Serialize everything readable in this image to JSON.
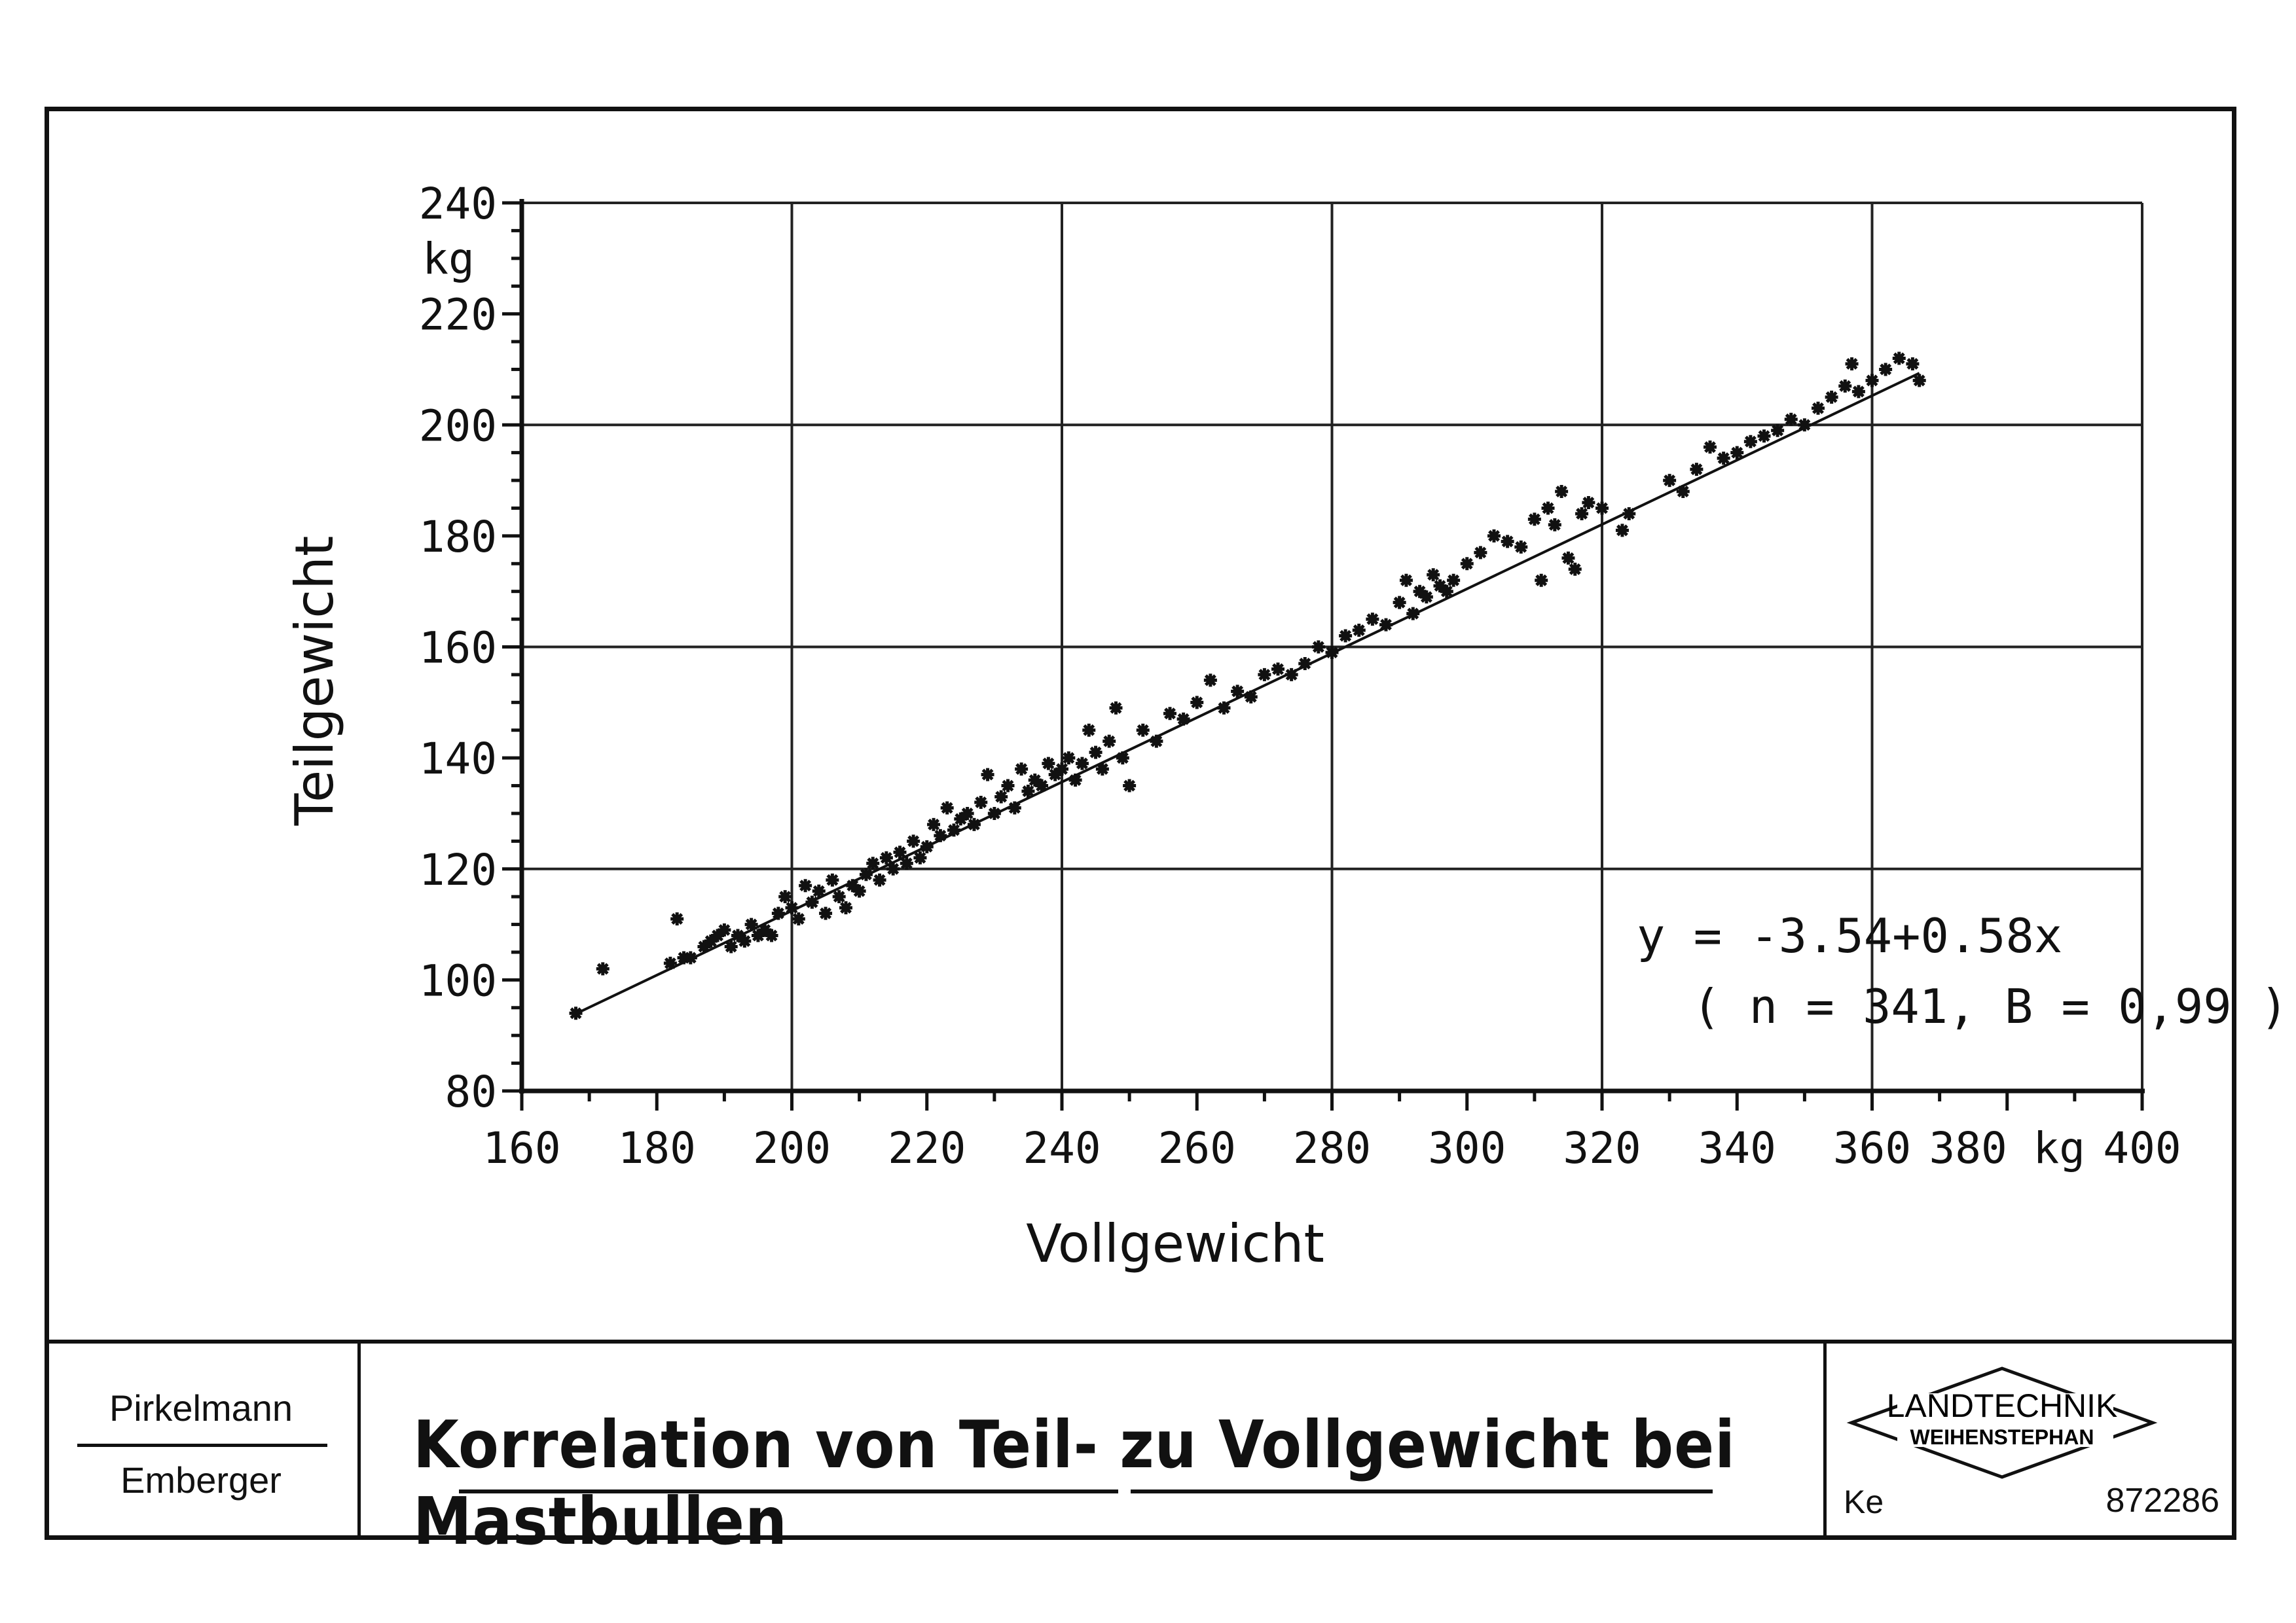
{
  "chart_data": {
    "type": "scatter",
    "title": "",
    "xlabel": "Vollgewicht",
    "ylabel": "Teilgewicht",
    "xlim": [
      160,
      400
    ],
    "ylim": [
      80,
      240
    ],
    "x_ticks": [
      {
        "value": 160,
        "label": "160"
      },
      {
        "value": 180,
        "label": "180"
      },
      {
        "value": 200,
        "label": "200"
      },
      {
        "value": 220,
        "label": "220"
      },
      {
        "value": 240,
        "label": "240"
      },
      {
        "value": 260,
        "label": "260"
      },
      {
        "value": 280,
        "label": "280"
      },
      {
        "value": 300,
        "label": "300"
      },
      {
        "value": 320,
        "label": "320"
      },
      {
        "value": 340,
        "label": "340"
      },
      {
        "value": 360,
        "label": "360"
      },
      {
        "value": 380,
        "label": "380 kg"
      },
      {
        "value": 400,
        "label": "400"
      }
    ],
    "y_ticks": [
      {
        "value": 80,
        "label": "80"
      },
      {
        "value": 100,
        "label": "100"
      },
      {
        "value": 120,
        "label": "120"
      },
      {
        "value": 140,
        "label": "140"
      },
      {
        "value": 160,
        "label": "160"
      },
      {
        "value": 180,
        "label": "180"
      },
      {
        "value": 200,
        "label": "200"
      },
      {
        "value": 220,
        "label": "220"
      },
      {
        "value": 240,
        "label": "240"
      }
    ],
    "y_unit": "kg",
    "grid": true,
    "grid_x": [
      200,
      240,
      280,
      320,
      360,
      400
    ],
    "grid_y": [
      120,
      160,
      200,
      240
    ],
    "regression": {
      "intercept": -3.54,
      "slope": 0.58,
      "x_range": [
        168,
        367
      ]
    },
    "equation": "y = -3.54+0.58x",
    "stats": "( n = 341, B = 0,99 )",
    "marker": "asterisk",
    "points": [
      [
        168,
        94
      ],
      [
        172,
        102
      ],
      [
        182,
        103
      ],
      [
        183,
        111
      ],
      [
        184,
        104
      ],
      [
        185,
        104
      ],
      [
        187,
        106
      ],
      [
        188,
        107
      ],
      [
        189,
        108
      ],
      [
        190,
        109
      ],
      [
        191,
        106
      ],
      [
        192,
        108
      ],
      [
        193,
        107
      ],
      [
        194,
        110
      ],
      [
        195,
        108
      ],
      [
        196,
        109
      ],
      [
        197,
        108
      ],
      [
        198,
        112
      ],
      [
        199,
        115
      ],
      [
        200,
        113
      ],
      [
        201,
        111
      ],
      [
        202,
        117
      ],
      [
        203,
        114
      ],
      [
        204,
        116
      ],
      [
        205,
        112
      ],
      [
        206,
        118
      ],
      [
        207,
        115
      ],
      [
        208,
        113
      ],
      [
        209,
        117
      ],
      [
        210,
        116
      ],
      [
        211,
        119
      ],
      [
        212,
        121
      ],
      [
        213,
        118
      ],
      [
        214,
        122
      ],
      [
        215,
        120
      ],
      [
        216,
        123
      ],
      [
        217,
        121
      ],
      [
        218,
        125
      ],
      [
        219,
        122
      ],
      [
        220,
        124
      ],
      [
        221,
        128
      ],
      [
        222,
        126
      ],
      [
        223,
        131
      ],
      [
        224,
        127
      ],
      [
        225,
        129
      ],
      [
        226,
        130
      ],
      [
        227,
        128
      ],
      [
        228,
        132
      ],
      [
        229,
        137
      ],
      [
        230,
        130
      ],
      [
        231,
        133
      ],
      [
        232,
        135
      ],
      [
        233,
        131
      ],
      [
        234,
        138
      ],
      [
        235,
        134
      ],
      [
        236,
        136
      ],
      [
        237,
        135
      ],
      [
        238,
        139
      ],
      [
        239,
        137
      ],
      [
        240,
        138
      ],
      [
        241,
        140
      ],
      [
        242,
        136
      ],
      [
        243,
        139
      ],
      [
        244,
        145
      ],
      [
        245,
        141
      ],
      [
        246,
        138
      ],
      [
        247,
        143
      ],
      [
        248,
        149
      ],
      [
        249,
        140
      ],
      [
        250,
        135
      ],
      [
        252,
        145
      ],
      [
        254,
        143
      ],
      [
        256,
        148
      ],
      [
        258,
        147
      ],
      [
        260,
        150
      ],
      [
        262,
        154
      ],
      [
        264,
        149
      ],
      [
        266,
        152
      ],
      [
        268,
        151
      ],
      [
        270,
        155
      ],
      [
        272,
        156
      ],
      [
        274,
        155
      ],
      [
        276,
        157
      ],
      [
        278,
        160
      ],
      [
        280,
        159
      ],
      [
        282,
        162
      ],
      [
        284,
        163
      ],
      [
        286,
        165
      ],
      [
        288,
        164
      ],
      [
        290,
        168
      ],
      [
        291,
        172
      ],
      [
        292,
        166
      ],
      [
        293,
        170
      ],
      [
        294,
        169
      ],
      [
        295,
        173
      ],
      [
        296,
        171
      ],
      [
        297,
        170
      ],
      [
        298,
        172
      ],
      [
        300,
        175
      ],
      [
        302,
        177
      ],
      [
        304,
        180
      ],
      [
        306,
        179
      ],
      [
        308,
        178
      ],
      [
        310,
        183
      ],
      [
        311,
        172
      ],
      [
        312,
        185
      ],
      [
        313,
        182
      ],
      [
        314,
        188
      ],
      [
        315,
        176
      ],
      [
        316,
        174
      ],
      [
        317,
        184
      ],
      [
        318,
        186
      ],
      [
        320,
        185
      ],
      [
        323,
        181
      ],
      [
        324,
        184
      ],
      [
        330,
        190
      ],
      [
        332,
        188
      ],
      [
        334,
        192
      ],
      [
        336,
        196
      ],
      [
        338,
        194
      ],
      [
        340,
        195
      ],
      [
        342,
        197
      ],
      [
        344,
        198
      ],
      [
        346,
        199
      ],
      [
        348,
        201
      ],
      [
        350,
        200
      ],
      [
        352,
        203
      ],
      [
        354,
        205
      ],
      [
        356,
        207
      ],
      [
        357,
        211
      ],
      [
        358,
        206
      ],
      [
        360,
        208
      ],
      [
        362,
        210
      ],
      [
        364,
        212
      ],
      [
        366,
        211
      ],
      [
        367,
        208
      ]
    ]
  },
  "footer": {
    "author1": "Pirkelmann",
    "author2": "Emberger",
    "figure_title": "Korrelation von Teil- zu Vollgewicht bei Mastbullen",
    "logo_line1": "LANDTECHNIK",
    "logo_line2": "WEIHENSTEPHAN",
    "initials": "Ke",
    "doc_number": "872286"
  }
}
